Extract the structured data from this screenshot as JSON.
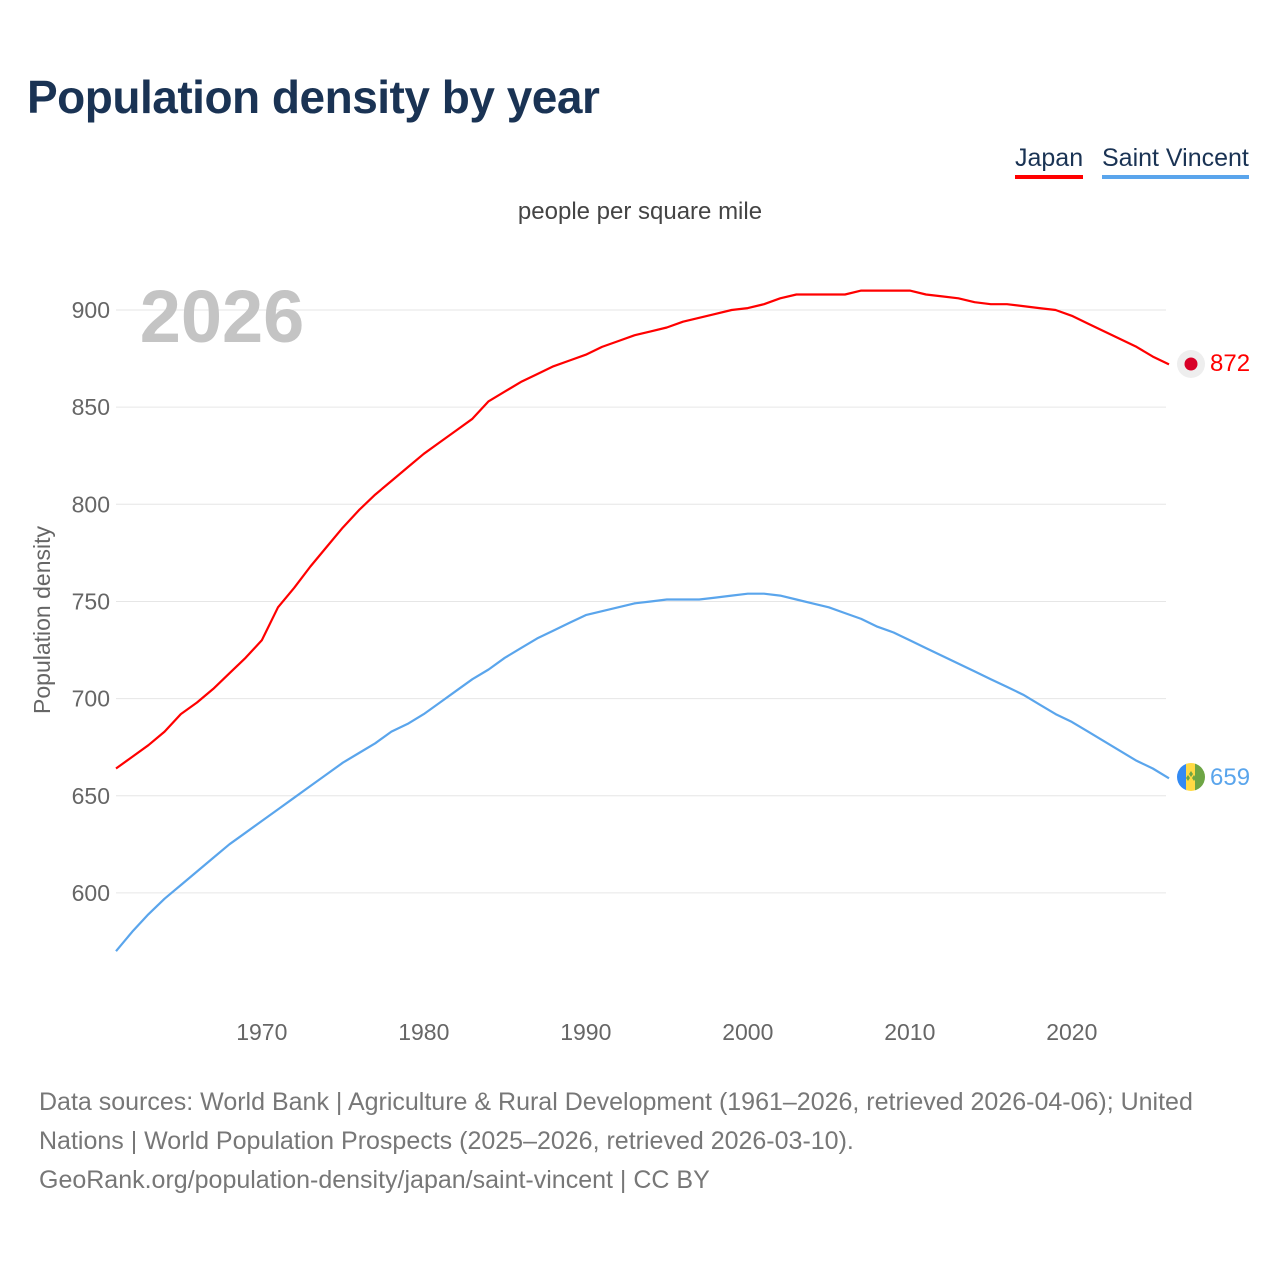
{
  "title": "Population density by year",
  "footer": {
    "line1": "Data sources: World Bank | Agriculture & Rural Development (1961–2026, retrieved 2026-04-06); United Nations | World Population Prospects (2025–2026, retrieved 2026-03-10).",
    "line2": "GeoRank.org/population-density/japan/saint-vincent | CC BY"
  },
  "chart_data": {
    "type": "line",
    "title": "Population density by year",
    "subtitle": "people per square mile",
    "ylabel": "Population density",
    "xlabel": "",
    "year_watermark": "2026",
    "ylim": [
      560,
      925
    ],
    "xlim": [
      1961,
      2026
    ],
    "yticks": [
      600,
      650,
      700,
      750,
      800,
      850,
      900
    ],
    "xticks": [
      1970,
      1980,
      1990,
      2000,
      2010,
      2020
    ],
    "grid": true,
    "legend": "top-right",
    "x_start": 1961,
    "series": [
      {
        "name": "Japan",
        "color": "#ff0000",
        "end_label": "872",
        "values": [
          664,
          670,
          676,
          683,
          692,
          698,
          705,
          713,
          721,
          730,
          747,
          757,
          768,
          778,
          788,
          797,
          805,
          812,
          819,
          826,
          832,
          838,
          844,
          853,
          858,
          863,
          867,
          871,
          874,
          877,
          881,
          884,
          887,
          889,
          891,
          894,
          896,
          898,
          900,
          901,
          903,
          906,
          908,
          908,
          908,
          908,
          910,
          910,
          910,
          910,
          908,
          907,
          906,
          904,
          903,
          903,
          902,
          901,
          900,
          897,
          893,
          889,
          885,
          881,
          876,
          872
        ]
      },
      {
        "name": "Saint Vincent",
        "color": "#5aa5ec",
        "end_label": "659",
        "values": [
          570,
          580,
          589,
          597,
          604,
          611,
          618,
          625,
          631,
          637,
          643,
          649,
          655,
          661,
          667,
          672,
          677,
          683,
          687,
          692,
          698,
          704,
          710,
          715,
          721,
          726,
          731,
          735,
          739,
          743,
          745,
          747,
          749,
          750,
          751,
          751,
          751,
          752,
          753,
          754,
          754,
          753,
          751,
          749,
          747,
          744,
          741,
          737,
          734,
          730,
          726,
          722,
          718,
          714,
          710,
          706,
          702,
          697,
          692,
          688,
          683,
          678,
          673,
          668,
          664,
          659
        ]
      }
    ]
  }
}
